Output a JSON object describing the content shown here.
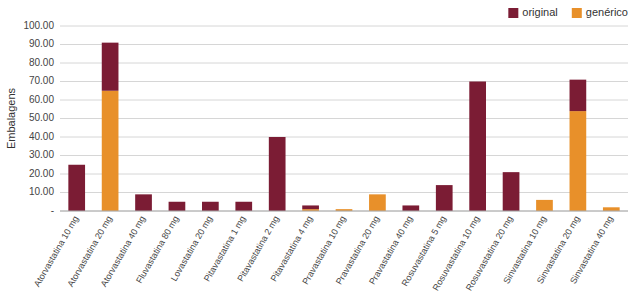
{
  "chart_data": {
    "type": "bar",
    "stacked": true,
    "categories": [
      "Atorvastatina 10 mg",
      "Atorvastatina 20 mg",
      "Atorvastatina 40 mg",
      "Fluvastatina 80 mg",
      "Lovastatina 20 mg",
      "Pitavastatina 1 mg",
      "Pitavastatina 2 mg",
      "Pitavastatina 4 mg",
      "Pravastatina 10 mg",
      "Pravastatina 20 mg",
      "Pravastatina 40 mg",
      "Rosuvastatina 5 mg",
      "Rosuvastatina 10 mg",
      "Rosuvastatina 20 mg",
      "Sinvastatina 10 mg",
      "Sinvastatina 20 mg",
      "Sinvastatina 40 mg"
    ],
    "series": [
      {
        "name": "genérico",
        "color": "#E8902A",
        "values": [
          0,
          65,
          0,
          0,
          0,
          0,
          0,
          1,
          1,
          9,
          0,
          0,
          0,
          0,
          6,
          54,
          2
        ]
      },
      {
        "name": "original",
        "color": "#7B1C34",
        "values": [
          25,
          26,
          9,
          5,
          5,
          5,
          40,
          2,
          0,
          0,
          3,
          14,
          70,
          21,
          0,
          17,
          0
        ]
      }
    ],
    "ylabel": "Embalagens",
    "ylim": [
      0,
      100
    ],
    "yticks": [
      {
        "value": 0,
        "label": "-"
      },
      {
        "value": 10,
        "label": "10.00"
      },
      {
        "value": 20,
        "label": "20.00"
      },
      {
        "value": 30,
        "label": "30.00"
      },
      {
        "value": 40,
        "label": "40.00"
      },
      {
        "value": 50,
        "label": "50.00"
      },
      {
        "value": 60,
        "label": "60.00"
      },
      {
        "value": 70,
        "label": "70.00"
      },
      {
        "value": 80,
        "label": "80.00"
      },
      {
        "value": 90,
        "label": "90.00"
      },
      {
        "value": 100,
        "label": "100.00"
      }
    ],
    "grid": true,
    "legend": "upper right"
  }
}
